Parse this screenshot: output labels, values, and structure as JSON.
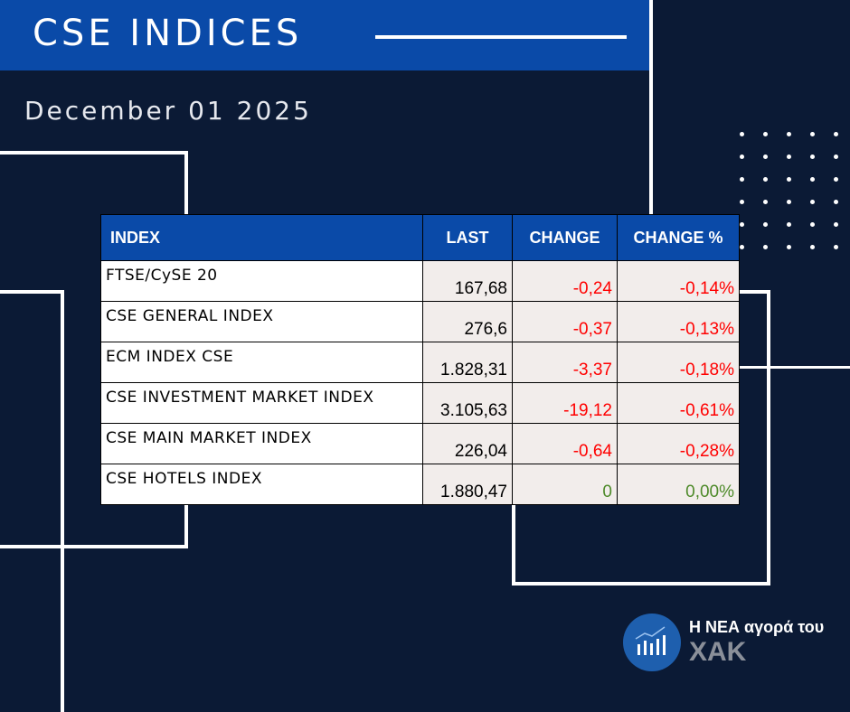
{
  "header": {
    "title": "CSE INDICES",
    "date": "December 01 2025"
  },
  "table": {
    "columns": [
      "INDEX",
      "LAST",
      "CHANGE",
      "CHANGE %"
    ],
    "rows": [
      {
        "name": "FTSE/CySE 20",
        "last": "167,68",
        "change": "-0,24",
        "pct": "-0,14%"
      },
      {
        "name": "CSE GENERAL INDEX",
        "last": "276,6",
        "change": "-0,37",
        "pct": "-0,13%"
      },
      {
        "name": "ECM INDEX CSE",
        "last": "1.828,31",
        "change": "-3,37",
        "pct": "-0,18%"
      },
      {
        "name": "CSE INVESTMENT MARKET INDEX",
        "last": "3.105,63",
        "change": "-19,12",
        "pct": "-0,61%"
      },
      {
        "name": "CSE MAIN MARKET INDEX",
        "last": "226,04",
        "change": "-0,64",
        "pct": "-0,28%"
      },
      {
        "name": "CSE HOTELS INDEX",
        "last": "1.880,47",
        "change": "0",
        "pct": "0,00%"
      }
    ]
  },
  "colors": {
    "negative": "#ff0000",
    "neutral": "#4e8a2a",
    "header": "#0a4aa8"
  },
  "logo": {
    "line1": "Η ΝΕΑ αγορά του",
    "line2": "ΧΑΚ"
  }
}
